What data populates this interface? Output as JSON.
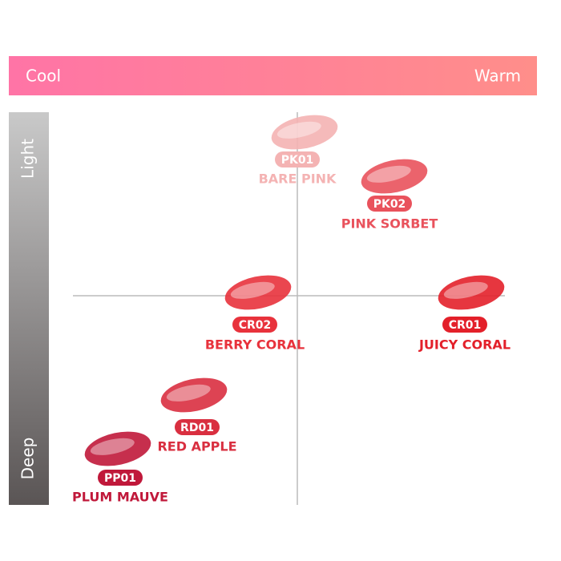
{
  "axes": {
    "left": "Cool",
    "right": "Warm",
    "top": "Light",
    "bottom": "Deep"
  },
  "nodes": [
    {
      "code": "PK01",
      "name": "BARE PINK",
      "color": "#f4b3b3"
    },
    {
      "code": "PK02",
      "name": "PINK SORBET",
      "color": "#e9525c"
    },
    {
      "code": "CR02",
      "name": "BERRY CORAL",
      "color": "#e8323c"
    },
    {
      "code": "CR01",
      "name": "JUICY CORAL",
      "color": "#e3202a"
    },
    {
      "code": "RD01",
      "name": "RED APPLE",
      "color": "#d92f40"
    },
    {
      "code": "PP01",
      "name": "PLUM MAUVE",
      "color": "#c0183a"
    }
  ]
}
